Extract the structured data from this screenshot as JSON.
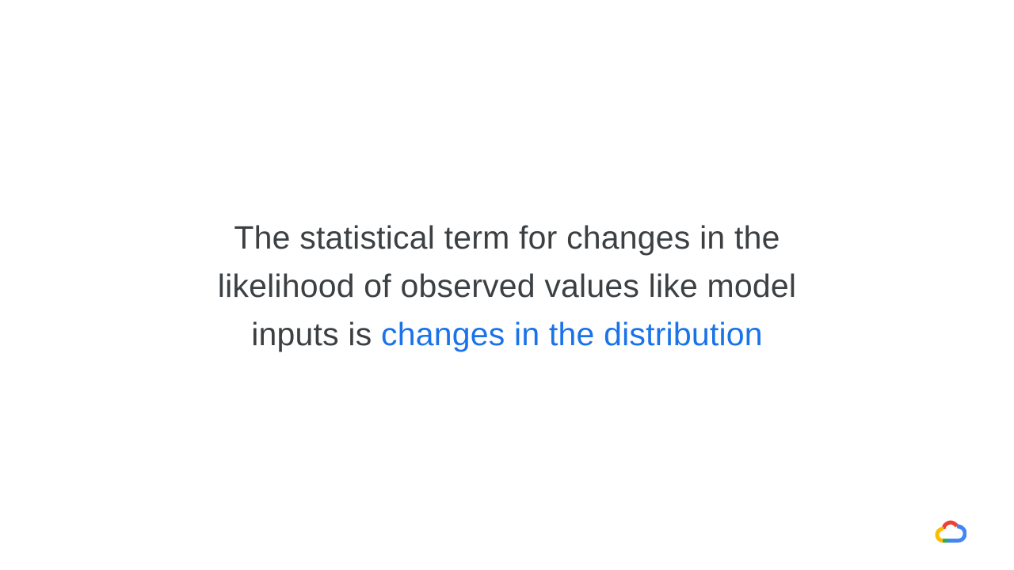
{
  "slide": {
    "line1": "The statistical term for changes in the",
    "line2": "likelihood of observed values like model",
    "line3_prefix": "inputs is ",
    "line3_highlight": "changes in the distribution",
    "text_color": "#3c4043",
    "highlight_color": "#1a73e8"
  },
  "logo": {
    "icon": "google-cloud-logo-icon",
    "colors": [
      "#ea4335",
      "#4285f4",
      "#34a853",
      "#fbbc04"
    ]
  }
}
